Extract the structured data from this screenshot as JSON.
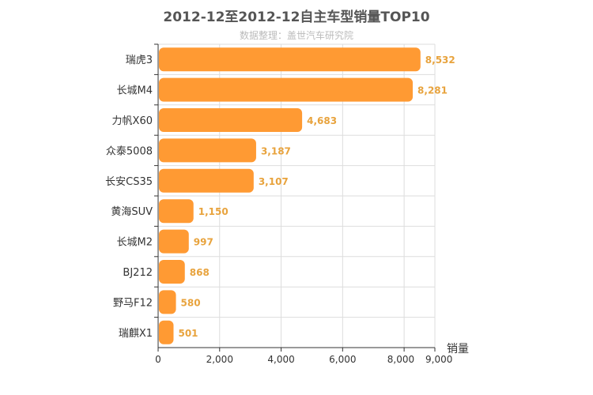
{
  "chart_data": {
    "type": "bar",
    "orientation": "horizontal",
    "title": "2012-12至2012-12自主车型销量TOP10",
    "subtitle": "数据整理：盖世汽车研究院",
    "categories": [
      "瑞虎3",
      "长城M4",
      "力帆X60",
      "众泰5008",
      "长安CS35",
      "黄海SUV",
      "长城M2",
      "BJ212",
      "野马F12",
      "瑞麒X1"
    ],
    "values": [
      8532,
      8281,
      4683,
      3187,
      3107,
      1150,
      997,
      868,
      580,
      501
    ],
    "value_labels": [
      "8,532",
      "8,281",
      "4,683",
      "3,187",
      "3,107",
      "1,150",
      "997",
      "868",
      "580",
      "501"
    ],
    "xlabel": "销量",
    "xlim": [
      0,
      9000
    ],
    "xticks": [
      0,
      2000,
      4000,
      6000,
      8000,
      9000
    ],
    "xtick_labels": [
      "0",
      "2,000",
      "4,000",
      "6,000",
      "8,000",
      "9,000"
    ],
    "grid": true,
    "colors": {
      "bar": "#FF9A33",
      "value_label": "#E8A33D",
      "grid": "#dddddd",
      "axis": "#333333"
    }
  }
}
